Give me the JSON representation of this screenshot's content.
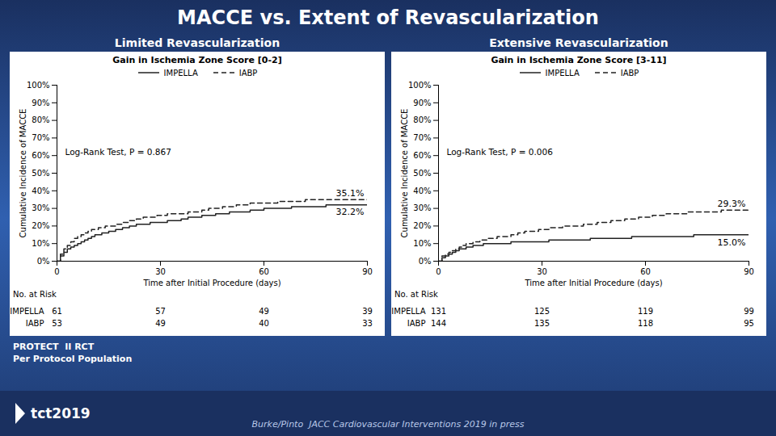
{
  "title": "MACCE vs. Extent of Revascularization",
  "annotations": [
    "PROTECT  II RCT",
    "Per Protocol Population"
  ],
  "citation": "Burke/Pinto  JACC Cardiovascular Interventions 2019 in press",
  "logo": "tct2019",
  "chart_data": [
    {
      "type": "line",
      "subtitle": "Limited Revascularization",
      "title": "Gain in Ischemia Zone Score [0-2]",
      "x_label": "Time after Initial Procedure (days)",
      "y_label": "Cumulative Incidence of MACCE",
      "xlim": [
        0,
        90
      ],
      "ylim": [
        0,
        100
      ],
      "xticks": [
        0,
        30,
        60,
        90
      ],
      "yticks": [
        {
          "value": 0,
          "label": "0%"
        },
        {
          "value": 10,
          "label": "10%"
        },
        {
          "value": 20,
          "label": "20%"
        },
        {
          "value": 30,
          "label": "30%"
        },
        {
          "value": 40,
          "label": "40%"
        },
        {
          "value": 50,
          "label": "50%"
        },
        {
          "value": 60,
          "label": "60%"
        },
        {
          "value": 70,
          "label": "70%"
        },
        {
          "value": 80,
          "label": "80%"
        },
        {
          "value": 90,
          "label": "90%"
        },
        {
          "value": 100,
          "label": "100%"
        }
      ],
      "grid": false,
      "legend": "top",
      "annotations": [
        "Log-Rank Test, P = 0.867"
      ],
      "risk_label": "No. at Risk",
      "series": [
        {
          "name": "IMPELLA",
          "color": "#222222",
          "line_style": "solid",
          "x": [
            0,
            1,
            2,
            3,
            4,
            5,
            6,
            7,
            8,
            9,
            10,
            11,
            12,
            13,
            14,
            15,
            17,
            19,
            21,
            23,
            25,
            27,
            29,
            30,
            32,
            34,
            36,
            38,
            40,
            42,
            44,
            46,
            48,
            50,
            52,
            54,
            56,
            58,
            60,
            62,
            64,
            66,
            68,
            70,
            72,
            74,
            76,
            78,
            80,
            82,
            84,
            86,
            88,
            90
          ],
          "values": [
            0,
            3,
            5,
            7,
            8,
            9,
            10,
            11,
            12,
            13,
            14,
            15,
            15,
            16,
            16,
            17,
            18,
            19,
            20,
            21,
            21,
            22,
            22,
            22,
            23,
            23,
            24,
            25,
            25,
            26,
            26,
            27,
            27,
            28,
            28,
            28,
            29,
            29,
            30,
            30,
            30,
            30,
            31,
            31,
            31,
            31,
            31,
            32,
            32,
            32,
            32,
            32,
            32,
            32.2
          ],
          "end_label": "32.2%",
          "at_risk": [
            61,
            57,
            49,
            39
          ]
        },
        {
          "name": "IABP",
          "color": "#222222",
          "line_style": "dashed",
          "x": [
            0,
            1,
            2,
            3,
            4,
            5,
            6,
            7,
            8,
            9,
            10,
            11,
            12,
            13,
            14,
            15,
            17,
            19,
            21,
            23,
            25,
            27,
            29,
            30,
            32,
            34,
            36,
            38,
            40,
            42,
            44,
            46,
            48,
            50,
            52,
            54,
            56,
            58,
            60,
            62,
            64,
            66,
            68,
            70,
            72,
            74,
            76,
            78,
            80,
            82,
            84,
            86,
            88,
            90
          ],
          "values": [
            0,
            4,
            7,
            9,
            11,
            13,
            14,
            15,
            16,
            17,
            18,
            18,
            19,
            19,
            20,
            20,
            21,
            22,
            23,
            24,
            25,
            25,
            26,
            26,
            27,
            27,
            27,
            28,
            28,
            29,
            30,
            30,
            31,
            31,
            32,
            32,
            33,
            33,
            33,
            33,
            34,
            34,
            34,
            34,
            35,
            35,
            35,
            35,
            35,
            35,
            35,
            35,
            35,
            35.1
          ],
          "end_label": "35.1%",
          "at_risk": [
            53,
            49,
            40,
            33
          ]
        }
      ]
    },
    {
      "type": "line",
      "subtitle": "Extensive Revascularization",
      "title": "Gain in Ischemia Zone Score [3-11]",
      "x_label": "Time after Initial Procedure (days)",
      "y_label": "Cumulative Incidence of MACCE",
      "xlim": [
        0,
        90
      ],
      "ylim": [
        0,
        100
      ],
      "xticks": [
        0,
        30,
        60,
        90
      ],
      "yticks": [
        {
          "value": 0,
          "label": "0%"
        },
        {
          "value": 10,
          "label": "10%"
        },
        {
          "value": 20,
          "label": "20%"
        },
        {
          "value": 30,
          "label": "30%"
        },
        {
          "value": 40,
          "label": "40%"
        },
        {
          "value": 50,
          "label": "50%"
        },
        {
          "value": 60,
          "label": "60%"
        },
        {
          "value": 70,
          "label": "70%"
        },
        {
          "value": 80,
          "label": "80%"
        },
        {
          "value": 90,
          "label": "90%"
        },
        {
          "value": 100,
          "label": "100%"
        }
      ],
      "grid": false,
      "legend": "top",
      "annotations": [
        "Log-Rank Test, P = 0.006"
      ],
      "risk_label": "No. at Risk",
      "series": [
        {
          "name": "IMPELLA",
          "color": "#222222",
          "line_style": "solid",
          "x": [
            0,
            1,
            2,
            3,
            4,
            5,
            6,
            7,
            8,
            9,
            10,
            11,
            12,
            13,
            14,
            15,
            17,
            19,
            21,
            23,
            25,
            27,
            29,
            30,
            32,
            34,
            36,
            38,
            40,
            42,
            44,
            46,
            48,
            50,
            52,
            54,
            56,
            58,
            60,
            62,
            64,
            66,
            68,
            70,
            72,
            74,
            76,
            78,
            80,
            82,
            84,
            86,
            88,
            90
          ],
          "values": [
            0,
            2,
            3,
            4,
            5,
            6,
            7,
            7,
            8,
            8,
            9,
            9,
            9,
            10,
            10,
            10,
            10,
            10,
            11,
            11,
            11,
            11,
            11,
            11,
            12,
            12,
            12,
            12,
            12,
            12,
            13,
            13,
            13,
            13,
            13,
            13,
            14,
            14,
            14,
            14,
            14,
            14,
            14,
            14,
            14,
            15,
            15,
            15,
            15,
            15,
            15,
            15,
            15,
            15.0
          ],
          "end_label": "15.0%",
          "at_risk": [
            131,
            125,
            119,
            99
          ]
        },
        {
          "name": "IABP",
          "color": "#222222",
          "line_style": "dashed",
          "x": [
            0,
            1,
            2,
            3,
            4,
            5,
            6,
            7,
            8,
            9,
            10,
            11,
            12,
            13,
            14,
            15,
            17,
            19,
            21,
            23,
            25,
            27,
            29,
            30,
            32,
            34,
            36,
            38,
            40,
            42,
            44,
            46,
            48,
            50,
            52,
            54,
            56,
            58,
            60,
            62,
            64,
            66,
            68,
            70,
            72,
            74,
            76,
            78,
            80,
            82,
            84,
            86,
            88,
            90
          ],
          "values": [
            0,
            3,
            4,
            5,
            6,
            7,
            8,
            9,
            10,
            10,
            11,
            11,
            12,
            12,
            13,
            13,
            14,
            14,
            15,
            16,
            17,
            17,
            18,
            18,
            19,
            19,
            20,
            20,
            20,
            21,
            21,
            22,
            22,
            23,
            23,
            24,
            24,
            25,
            25,
            26,
            26,
            27,
            27,
            27,
            28,
            28,
            28,
            28,
            28,
            29,
            29,
            29,
            29,
            29.3
          ],
          "end_label": "29.3%",
          "at_risk": [
            144,
            135,
            118,
            95
          ]
        }
      ]
    }
  ]
}
